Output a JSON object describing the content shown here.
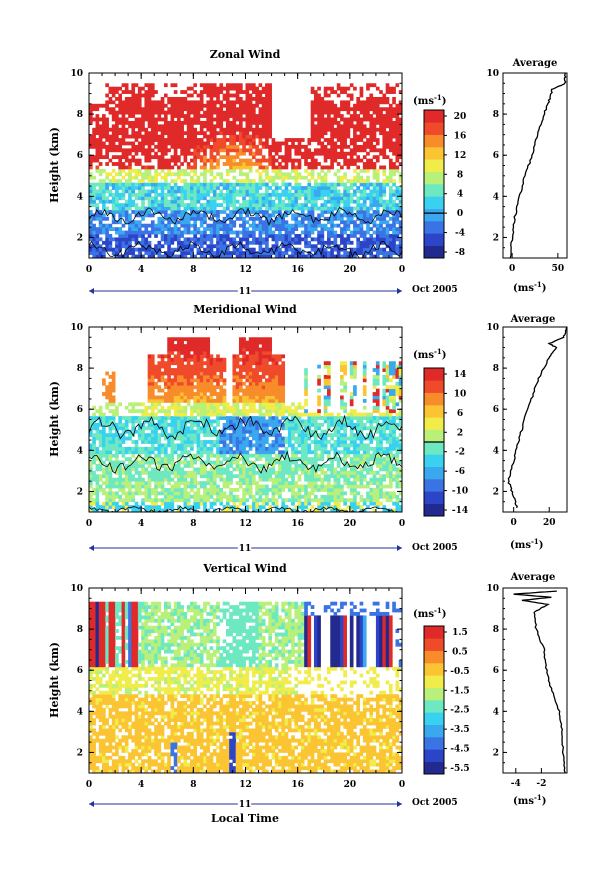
{
  "page": {
    "xlabel": "Local Time",
    "avg_xunit": "(ms",
    "unit_label": "(ms",
    "exp": "-1",
    "avg_title": "Average"
  },
  "chart_data": [
    {
      "type": "heatmap",
      "title": "Zonal Wind",
      "ylabel": "Height (km)",
      "ylim": [
        1,
        10
      ],
      "y_ticks": [
        2,
        4,
        6,
        8,
        10
      ],
      "x_tick_labels": [
        "0",
        "4",
        "8",
        "12",
        "16",
        "20",
        "0"
      ],
      "xlim_hours": [
        0,
        24
      ],
      "date_bar_label": "11",
      "date_label": "Oct 2005",
      "colorbar": {
        "unit": "(ms",
        "ticks": [
          20,
          16,
          12,
          8,
          4,
          0,
          -4,
          -8
        ],
        "zero_line_value": 0,
        "colors": [
          "#222a90",
          "#2c44c8",
          "#3a74e4",
          "#3aa8ef",
          "#38d2f0",
          "#6ee8c0",
          "#b8f07a",
          "#f0ec4a",
          "#fbc433",
          "#f88c2a",
          "#ef4a2a",
          "#e02a2a"
        ]
      },
      "profile": {
        "title": "Average",
        "xlim": [
          -10,
          60
        ],
        "x_ticks": [
          0,
          50
        ],
        "x_tick_labels": [
          "0",
          "50"
        ],
        "y_ticks": [
          2,
          4,
          6,
          8,
          10
        ],
        "points": [
          [
            -2,
            1.0
          ],
          [
            0,
            2.0
          ],
          [
            3,
            3.0
          ],
          [
            8,
            4.0
          ],
          [
            14,
            5.0
          ],
          [
            22,
            6.0
          ],
          [
            28,
            7.0
          ],
          [
            35,
            8.0
          ],
          [
            40,
            8.6
          ],
          [
            44,
            9.2
          ],
          [
            58,
            9.5
          ],
          [
            58,
            10.0
          ]
        ]
      }
    },
    {
      "type": "heatmap",
      "title": "Meridional Wind",
      "ylabel": "Height (km)",
      "ylim": [
        1,
        10
      ],
      "y_ticks": [
        2,
        4,
        6,
        8,
        10
      ],
      "x_tick_labels": [
        "0",
        "4",
        "8",
        "12",
        "16",
        "20",
        "0"
      ],
      "xlim_hours": [
        0,
        24
      ],
      "date_bar_label": "11",
      "date_label": "Oct 2005",
      "colorbar": {
        "unit": "(ms",
        "ticks": [
          14,
          10,
          6,
          2,
          -2,
          -6,
          -10,
          -14
        ],
        "zero_line_value": 0,
        "colors": [
          "#222a90",
          "#2c44c8",
          "#3a74e4",
          "#3aa8ef",
          "#38d2f0",
          "#6ee8c0",
          "#b8f07a",
          "#f0ec4a",
          "#fbc433",
          "#f88c2a",
          "#ef4a2a",
          "#e02a2a"
        ]
      },
      "profile": {
        "title": "Average",
        "xlim": [
          -6,
          30
        ],
        "x_ticks": [
          0,
          20
        ],
        "x_tick_labels": [
          "0",
          "20"
        ],
        "y_ticks": [
          2,
          4,
          6,
          8,
          10
        ],
        "points": [
          [
            2,
            1.2
          ],
          [
            0,
            1.8
          ],
          [
            -3,
            2.5
          ],
          [
            0,
            3.5
          ],
          [
            3,
            4.5
          ],
          [
            6,
            5.5
          ],
          [
            10,
            6.5
          ],
          [
            14,
            7.5
          ],
          [
            20,
            8.5
          ],
          [
            24,
            9.0
          ],
          [
            20,
            9.2
          ],
          [
            28,
            9.5
          ],
          [
            30,
            10.0
          ]
        ]
      }
    },
    {
      "type": "heatmap",
      "title": "Vertical Wind",
      "ylabel": "Height (km)",
      "ylim": [
        1,
        10
      ],
      "y_ticks": [
        2,
        4,
        6,
        8,
        10
      ],
      "x_tick_labels": [
        "0",
        "4",
        "8",
        "12",
        "16",
        "20",
        "0"
      ],
      "xlim_hours": [
        0,
        24
      ],
      "date_bar_label": "11",
      "date_label": "Oct 2005",
      "colorbar": {
        "unit": "(ms",
        "ticks": [
          1.5,
          0.5,
          -0.5,
          -1.5,
          -2.5,
          -3.5,
          -4.5,
          -5.5
        ],
        "colors": [
          "#222a90",
          "#2c44c8",
          "#3a74e4",
          "#3aa8ef",
          "#38d2f0",
          "#6ee8c0",
          "#b8f07a",
          "#f0ec4a",
          "#fbc433",
          "#f88c2a",
          "#ef4a2a",
          "#e02a2a"
        ]
      },
      "profile": {
        "title": "Average",
        "xlim": [
          -5,
          0
        ],
        "x_ticks": [
          -4,
          -2
        ],
        "x_tick_labels": [
          "-4",
          "-2"
        ],
        "y_ticks": [
          2,
          4,
          6,
          8,
          10
        ],
        "points": [
          [
            -0.2,
            1.0
          ],
          [
            -0.3,
            2.0
          ],
          [
            -0.4,
            3.0
          ],
          [
            -0.6,
            4.0
          ],
          [
            -1.2,
            5.0
          ],
          [
            -1.6,
            6.0
          ],
          [
            -1.8,
            7.0
          ],
          [
            -2.4,
            8.0
          ],
          [
            -2.6,
            8.8
          ],
          [
            -1.5,
            9.2
          ],
          [
            -3.5,
            9.4
          ],
          [
            -1.2,
            9.55
          ],
          [
            -4.2,
            9.7
          ],
          [
            -0.8,
            9.85
          ]
        ]
      }
    }
  ]
}
